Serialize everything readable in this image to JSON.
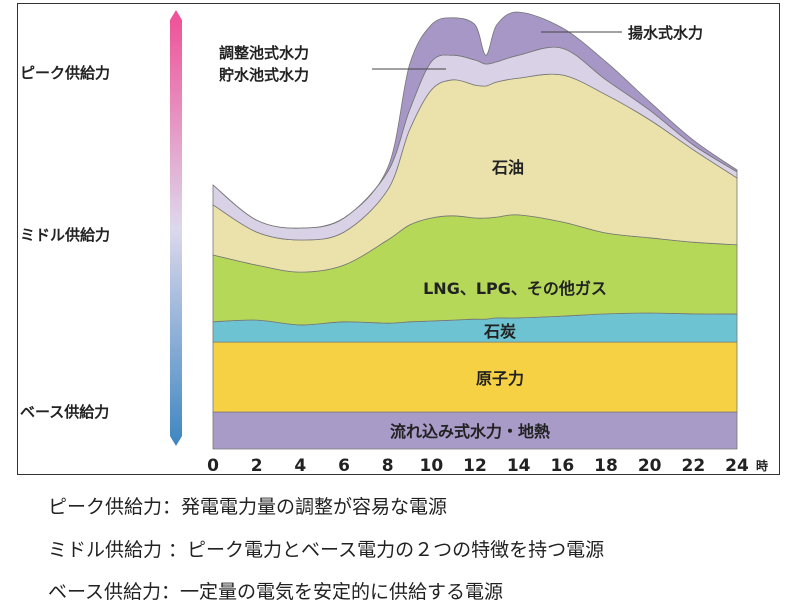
{
  "chart_data": {
    "type": "area",
    "stacked": true,
    "x_unit_label": "時",
    "x": [
      0,
      2,
      4,
      6,
      8,
      9,
      10,
      11,
      12,
      12.5,
      13,
      14,
      16,
      18,
      20,
      22,
      24
    ],
    "x_ticks": [
      0,
      2,
      4,
      6,
      8,
      10,
      12,
      14,
      16,
      18,
      20,
      22,
      24
    ],
    "xlim": [
      0,
      24
    ],
    "ylim": [
      0,
      100
    ],
    "grid": false,
    "series": [
      {
        "name": "流れ込み式水力・地熱",
        "color": "#a99bc7",
        "values": [
          8.4,
          8.4,
          8.4,
          8.4,
          8.4,
          8.4,
          8.4,
          8.4,
          8.4,
          8.4,
          8.4,
          8.4,
          8.4,
          8.4,
          8.4,
          8.4,
          8.4
        ]
      },
      {
        "name": "原子力",
        "color": "#f6d143",
        "values": [
          15.9,
          15.9,
          15.9,
          15.9,
          15.9,
          15.9,
          15.9,
          15.9,
          15.9,
          15.9,
          15.9,
          15.9,
          15.9,
          15.9,
          15.9,
          15.9,
          15.9
        ]
      },
      {
        "name": "石炭",
        "color": "#6ec3d2",
        "values": [
          4.6,
          5.0,
          3.9,
          4.6,
          4.3,
          4.6,
          4.8,
          5.0,
          5.2,
          5.2,
          5.5,
          5.5,
          5.9,
          6.4,
          6.6,
          6.4,
          6.4
        ]
      },
      {
        "name": "LNG、LPG、その他ガス",
        "color": "#b5d858",
        "values": [
          15.2,
          12.5,
          12.0,
          12.9,
          18.9,
          22.0,
          23.4,
          23.7,
          23.0,
          23.0,
          22.9,
          23.4,
          21.4,
          18.4,
          17.1,
          16.3,
          15.7
        ]
      },
      {
        "name": "石油",
        "color": "#eae2aa",
        "values": [
          11.4,
          7.5,
          7.3,
          7.5,
          11.4,
          21.6,
          29.1,
          30.9,
          30.2,
          30.0,
          30.7,
          31.1,
          33.4,
          31.4,
          26.8,
          21.0,
          15.2
        ]
      },
      {
        "name": "調整池式水力\n貯水池式水力",
        "label_lines": [
          "調整池式水力",
          "貯水池式水力"
        ],
        "color": "#d9d1e6",
        "values": [
          4.5,
          2.7,
          2.7,
          3.2,
          4.1,
          4.5,
          6.4,
          5.6,
          5.7,
          5.0,
          4.6,
          5.2,
          6.1,
          3.4,
          2.2,
          1.1,
          1.4
        ]
      },
      {
        "name": "揚水式水力",
        "color": "#a797c6",
        "values": [
          0,
          0,
          0,
          0,
          0.9,
          10.3,
          8.4,
          8.5,
          8.0,
          2.0,
          8.4,
          9.8,
          4.6,
          4.1,
          1.9,
          1.1,
          0.4
        ]
      }
    ],
    "supply_scale": {
      "labels": [
        "ピーク供給力",
        "ミドル供給力",
        "ベース供給力"
      ],
      "gradient_colors": [
        "#ef4f95",
        "#ddd8ec",
        "#3d86c1"
      ]
    }
  },
  "notes": [
    "ピーク供給力：発電電力量の調整が容易な電源",
    "ミドル供給力 ：ピーク電力とベース電力の２つの特徴を持つ電源",
    "ベース供給力：一定量の電気を安定的に供給する電源"
  ]
}
